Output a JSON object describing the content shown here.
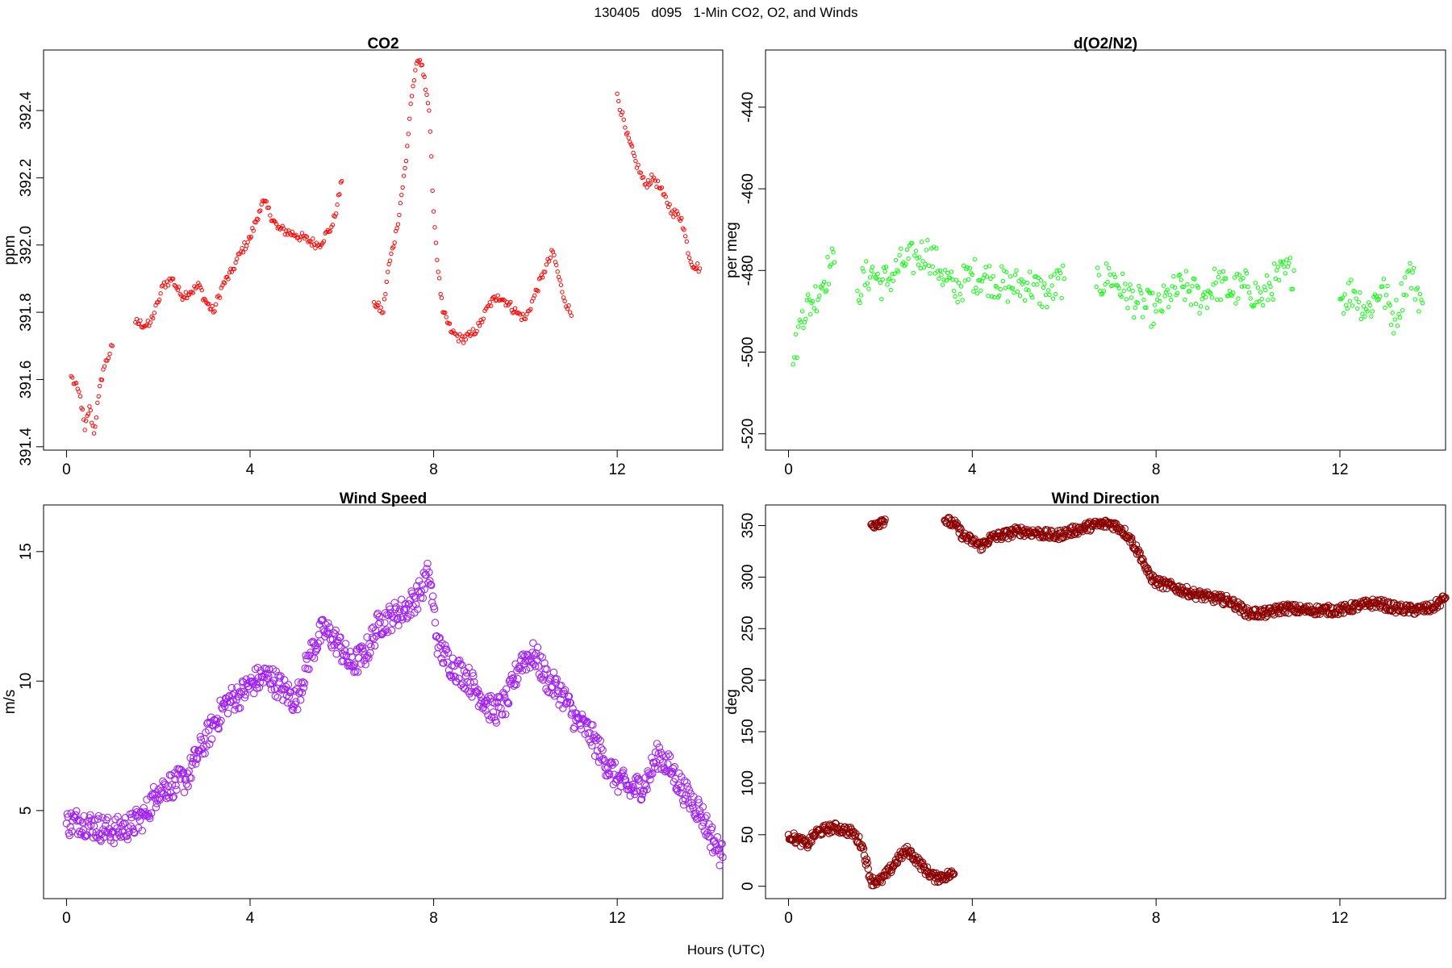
{
  "figure": {
    "title": "130405   d095   1-Min CO2, O2, and Winds",
    "xlabel": "Hours (UTC)"
  },
  "chart_data": [
    {
      "type": "scatter",
      "title": "CO2",
      "xlabel": "",
      "ylabel": "ppm",
      "xlim": [
        -0.5,
        14.3
      ],
      "ylim": [
        391.39,
        392.58
      ],
      "xticks": [
        0,
        4,
        8,
        12
      ],
      "yticks": [
        391.4,
        391.6,
        391.8,
        392.0,
        392.2,
        392.4
      ],
      "ytick_labels": [
        "391.4",
        "391.6",
        "391.8",
        "392.0",
        "392.2",
        "392.4"
      ],
      "color": "#ff0000",
      "marker": "circle-open",
      "series": [
        {
          "segments": [
            {
              "x": [
                0.1,
                0.3,
                0.4,
                0.5,
                0.6,
                0.7,
                0.8,
                1.0
              ],
              "y": [
                391.61,
                391.55,
                391.45,
                391.52,
                391.44,
                391.55,
                391.63,
                391.7
              ]
            },
            {
              "x": [
                1.5,
                1.8,
                2.0,
                2.1,
                2.3,
                2.5,
                2.7,
                2.9,
                3.0,
                3.2,
                3.4,
                3.6,
                3.8,
                4.0,
                4.2,
                4.3,
                4.6,
                5.0,
                5.5,
                5.8,
                5.9,
                6.0
              ],
              "y": [
                391.77,
                391.76,
                391.83,
                391.88,
                391.9,
                391.85,
                391.86,
                391.88,
                391.84,
                391.8,
                391.88,
                391.92,
                391.98,
                392.02,
                392.1,
                392.13,
                392.05,
                392.03,
                392.0,
                392.06,
                392.12,
                392.19
              ]
            },
            {
              "x": [
                6.7,
                6.9,
                7.0,
                7.2,
                7.4,
                7.5,
                7.6,
                7.7,
                7.8,
                7.9,
                8.0,
                8.1,
                8.2,
                8.4,
                8.6,
                8.8,
                9.0,
                9.2,
                9.4,
                9.6,
                9.8,
                10.0,
                10.2,
                10.4,
                10.6,
                10.8,
                11.0
              ],
              "y": [
                391.83,
                391.8,
                391.92,
                392.05,
                392.25,
                392.42,
                392.52,
                392.55,
                392.5,
                392.4,
                392.1,
                391.92,
                391.8,
                391.74,
                391.72,
                391.73,
                391.76,
                391.82,
                391.85,
                391.83,
                391.8,
                391.78,
                391.85,
                391.92,
                391.98,
                391.86,
                391.79
              ]
            },
            {
              "x": [
                12.0,
                12.2,
                12.4,
                12.6,
                12.8,
                13.0,
                13.2,
                13.4,
                13.6,
                13.8
              ],
              "y": [
                392.45,
                392.33,
                392.25,
                392.18,
                392.2,
                392.15,
                392.1,
                392.08,
                391.95,
                391.93
              ]
            }
          ]
        }
      ]
    },
    {
      "type": "scatter",
      "title": "d(O2/N2)",
      "xlabel": "",
      "ylabel": "per meg",
      "xlim": [
        -0.5,
        14.3
      ],
      "ylim": [
        -524,
        -426
      ],
      "xticks": [
        0,
        4,
        8,
        12
      ],
      "yticks": [
        -520,
        -500,
        -480,
        -460,
        -440
      ],
      "ytick_labels": [
        "-520",
        "-500",
        "-480",
        "-460",
        "-440"
      ],
      "color": "#00ff00",
      "marker": "circle-open",
      "series": [
        {
          "segments": [
            {
              "x": [
                0.1,
                0.3,
                0.5,
                0.7,
                0.9,
                1.0
              ],
              "y": [
                -503,
                -490,
                -488,
                -484,
                -479,
                -478
              ]
            },
            {
              "x": [
                1.5,
                1.8,
                2.0,
                2.2,
                2.5,
                2.8,
                3.0,
                3.3,
                3.6,
                4.0,
                4.4,
                4.8,
                5.2,
                5.6,
                6.0
              ],
              "y": [
                -485,
                -480,
                -483,
                -482,
                -478,
                -477,
                -475,
                -480,
                -485,
                -481,
                -482,
                -484,
                -483,
                -486,
                -482
              ]
            },
            {
              "x": [
                6.7,
                7.0,
                7.3,
                7.6,
                8.0,
                8.3,
                8.6,
                9.0,
                9.3,
                9.6,
                10.0,
                10.3,
                10.6,
                11.0
              ],
              "y": [
                -484,
                -481,
                -485,
                -488,
                -490,
                -486,
                -484,
                -487,
                -483,
                -485,
                -484,
                -487,
                -482,
                -480
              ]
            },
            {
              "x": [
                12.0,
                12.3,
                12.6,
                12.9,
                13.2,
                13.5,
                13.8
              ],
              "y": [
                -487,
                -485,
                -490,
                -484,
                -492,
                -480,
                -488
              ]
            }
          ]
        }
      ]
    },
    {
      "type": "scatter",
      "title": "Wind Speed",
      "xlabel": "",
      "ylabel": "m/s",
      "xlim": [
        -0.5,
        14.3
      ],
      "ylim": [
        1.6,
        16.8
      ],
      "xticks": [
        0,
        4,
        8,
        12
      ],
      "yticks": [
        5,
        10,
        15
      ],
      "ytick_labels": [
        "5",
        "10",
        "15"
      ],
      "color": "#a020f0",
      "marker": "circle-open",
      "series": [
        {
          "segments": [
            {
              "x": [
                0.0,
                0.3,
                0.6,
                1.0,
                1.4,
                1.7,
                2.0,
                2.3,
                2.6,
                2.9,
                3.2,
                3.5,
                3.8,
                4.1,
                4.4,
                4.7,
                5.0,
                5.3,
                5.6,
                5.9,
                6.2,
                6.5,
                6.8,
                7.1,
                7.4,
                7.7,
                7.9,
                8.1,
                8.4,
                8.7,
                9.0,
                9.3,
                9.6,
                9.9,
                10.2,
                10.5,
                10.8,
                11.1,
                11.4,
                11.7,
                12.0,
                12.3,
                12.6,
                12.9,
                13.2,
                13.5,
                13.8,
                14.1,
                14.3
              ],
              "y": [
                4.5,
                4.6,
                4.4,
                4.2,
                4.4,
                4.8,
                5.8,
                6.0,
                6.2,
                7.3,
                8.3,
                9.2,
                9.5,
                10.0,
                10.2,
                9.7,
                9.2,
                11.0,
                12.0,
                11.5,
                10.6,
                11.0,
                12.2,
                12.5,
                12.8,
                13.4,
                14.2,
                11.3,
                10.6,
                10.2,
                9.5,
                8.8,
                9.2,
                10.8,
                11.0,
                10.0,
                9.5,
                8.5,
                8.0,
                7.0,
                6.2,
                5.8,
                6.0,
                7.2,
                6.5,
                5.6,
                5.0,
                3.8,
                3.2
              ]
            }
          ]
        }
      ]
    },
    {
      "type": "scatter",
      "title": "Wind Direction",
      "xlabel": "",
      "ylabel": "deg",
      "xlim": [
        -0.5,
        14.3
      ],
      "ylim": [
        -12,
        370
      ],
      "xticks": [
        0,
        4,
        8,
        12
      ],
      "yticks": [
        0,
        50,
        100,
        150,
        200,
        250,
        300,
        350
      ],
      "ytick_labels": [
        "0",
        "50",
        "100",
        "150",
        "200",
        "250",
        "300",
        "350"
      ],
      "color": "#8b0000",
      "marker": "circle-open",
      "series": [
        {
          "segments": [
            {
              "x": [
                0.0,
                0.2,
                0.4,
                0.6,
                0.8,
                1.0,
                1.2,
                1.4,
                1.6,
                1.8,
                2.0,
                2.2,
                2.4,
                2.6,
                2.8,
                3.0,
                3.2,
                3.4,
                3.6
              ],
              "y": [
                50,
                45,
                40,
                52,
                55,
                57,
                55,
                52,
                40,
                5,
                5,
                15,
                28,
                35,
                25,
                15,
                8,
                10,
                12
              ]
            },
            {
              "x": [
                1.8,
                1.9,
                2.0,
                2.1
              ],
              "y": [
                351,
                352,
                354,
                356
              ]
            },
            {
              "x": [
                3.4,
                3.6,
                3.8,
                4.0,
                4.2,
                4.4,
                4.6,
                4.8,
                5.0,
                5.4,
                5.8,
                6.2,
                6.6,
                7.0,
                7.2,
                7.4,
                7.6,
                7.7,
                7.8,
                8.0,
                8.4,
                8.8,
                9.2,
                9.6,
                10.0,
                10.4,
                10.8,
                11.2,
                11.6,
                12.0,
                12.4,
                12.8,
                13.2,
                13.6,
                14.0,
                14.3
              ],
              "y": [
                355,
                352,
                340,
                335,
                330,
                338,
                340,
                342,
                345,
                343,
                340,
                345,
                350,
                352,
                348,
                340,
                325,
                318,
                305,
                295,
                290,
                284,
                280,
                277,
                265,
                265,
                270,
                268,
                268,
                268,
                272,
                275,
                270,
                268,
                270,
                280
              ]
            }
          ]
        }
      ]
    }
  ]
}
